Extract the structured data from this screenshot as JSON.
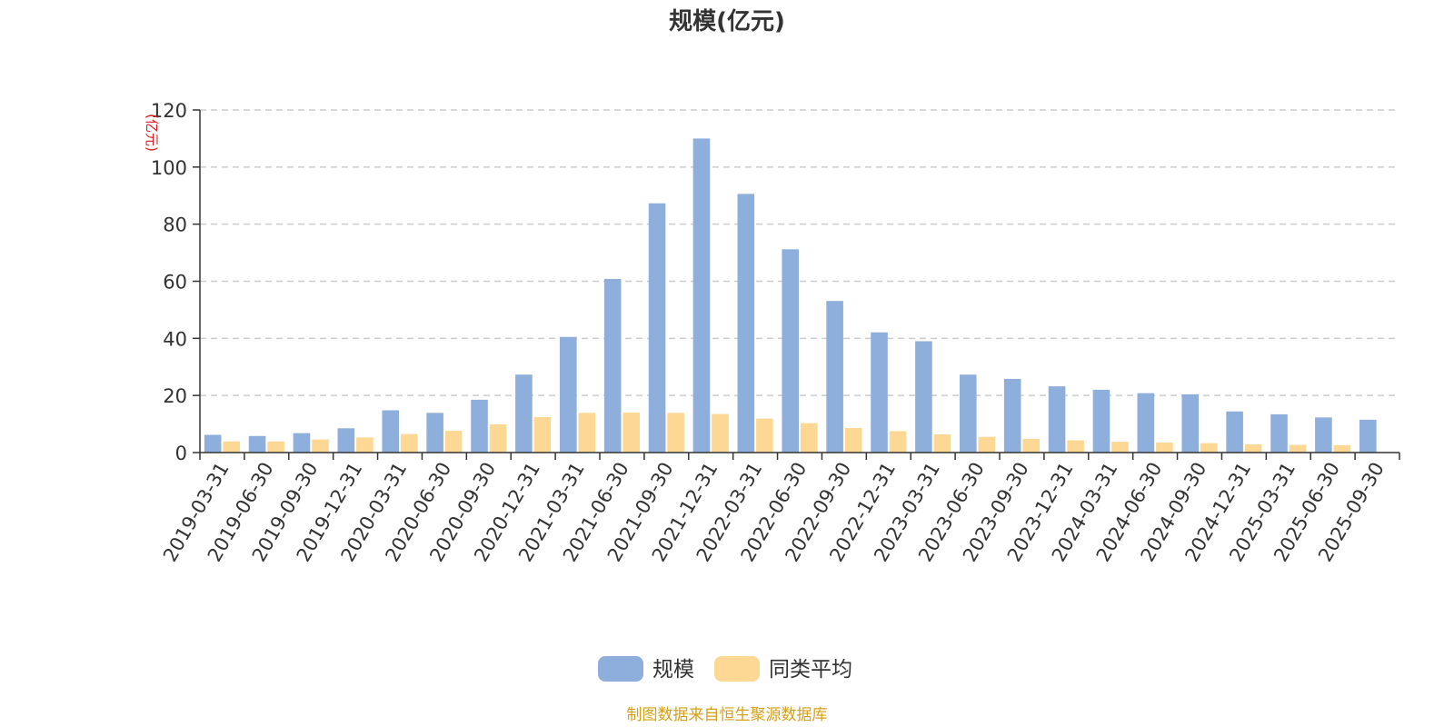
{
  "chart_data": {
    "type": "bar",
    "title": "规模(亿元)",
    "ylabel": "(亿元)",
    "xlabel": "",
    "ylim": [
      0,
      120
    ],
    "yticks": [
      0,
      20,
      40,
      60,
      80,
      100,
      120
    ],
    "grid": true,
    "legend_position": "bottom-center",
    "categories": [
      "2019-03-31",
      "2019-06-30",
      "2019-09-30",
      "2019-12-31",
      "2020-03-31",
      "2020-06-30",
      "2020-09-30",
      "2020-12-31",
      "2021-03-31",
      "2021-06-30",
      "2021-09-30",
      "2021-12-31",
      "2022-03-31",
      "2022-06-30",
      "2022-09-30",
      "2022-12-31",
      "2023-03-31",
      "2023-06-30",
      "2023-09-30",
      "2023-12-31",
      "2024-03-31",
      "2024-06-30",
      "2024-09-30",
      "2024-12-31",
      "2025-03-31",
      "2025-06-30",
      "2025-09-30"
    ],
    "series": [
      {
        "name": "规模",
        "color": "#8eaedb",
        "values": [
          6.2,
          5.8,
          6.8,
          8.5,
          14.8,
          13.9,
          18.5,
          27.3,
          40.5,
          60.8,
          87.3,
          110.0,
          90.6,
          71.2,
          53.1,
          42.1,
          39.0,
          27.3,
          25.8,
          23.2,
          22.0,
          20.8,
          20.4,
          14.4,
          13.4,
          12.3,
          11.5
        ]
      },
      {
        "name": "同类平均",
        "color": "#fdd895",
        "values": [
          3.9,
          3.9,
          4.6,
          5.3,
          6.5,
          7.6,
          9.9,
          12.4,
          13.9,
          14.0,
          13.9,
          13.5,
          11.9,
          10.3,
          8.6,
          7.5,
          6.4,
          5.5,
          4.8,
          4.3,
          3.8,
          3.5,
          3.3,
          2.9,
          2.7,
          2.6,
          0
        ]
      }
    ]
  },
  "source_text": "制图数据来自恒生聚源数据库",
  "colors": {
    "axis": "#333333",
    "grid": "#cccccc",
    "unit_label": "#e0191e",
    "source_text": "#d4a017"
  }
}
